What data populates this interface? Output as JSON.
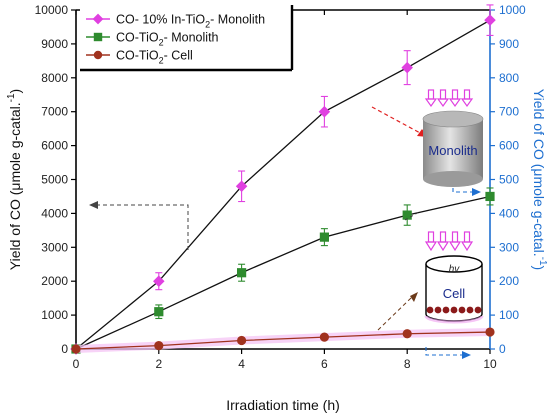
{
  "chart_data": {
    "type": "line",
    "xlabel": "Irradiation time (h)",
    "ylabel_left": "Yield of CO (μmole g-catal.",
    "ylabel_left_sup": "-1",
    "ylabel_left_end": ")",
    "ylabel_right": "Yield of CO (μmole g-catal.",
    "ylabel_right_sup": "-1",
    "ylabel_right_end": ")",
    "xlim": [
      0,
      10
    ],
    "ylim_left": [
      0,
      10000
    ],
    "ylim_right": [
      0,
      1000
    ],
    "x_ticks": [
      0,
      2,
      4,
      6,
      8,
      10
    ],
    "y_ticks_left": [
      0,
      1000,
      2000,
      3000,
      4000,
      5000,
      6000,
      7000,
      8000,
      9000,
      10000
    ],
    "y_ticks_right": [
      0,
      100,
      200,
      300,
      400,
      500,
      600,
      700,
      800,
      900,
      1000
    ],
    "legend_position": "top-left",
    "series": [
      {
        "name": "CO- 10% In-TiO2- Monolith",
        "legend_parts": [
          "CO- 10% In-TiO",
          "2",
          "- Monolith"
        ],
        "axis": "right",
        "color": "#e040e0",
        "marker": "diamond",
        "x": [
          0,
          2,
          4,
          6,
          8,
          10
        ],
        "y": [
          0,
          200,
          480,
          700,
          830,
          970
        ],
        "err": [
          0,
          25,
          45,
          45,
          50,
          45
        ]
      },
      {
        "name": "CO-TiO2- Monolith",
        "legend_parts": [
          "CO-TiO",
          "2",
          "- Monolith"
        ],
        "axis": "right",
        "color": "#2e8b2e",
        "marker": "square",
        "x": [
          0,
          2,
          4,
          6,
          8,
          10
        ],
        "y": [
          0,
          110,
          225,
          330,
          395,
          450
        ],
        "err": [
          0,
          20,
          25,
          25,
          30,
          25
        ]
      },
      {
        "name": "CO-TiO2- Cell",
        "legend_parts": [
          "CO-TiO",
          "2",
          "- Cell"
        ],
        "axis": "left",
        "color": "#a0321e",
        "marker": "circle",
        "x": [
          0,
          2,
          4,
          6,
          8,
          10
        ],
        "y": [
          0,
          100,
          250,
          350,
          450,
          500
        ],
        "err": [
          0,
          0,
          0,
          0,
          0,
          0
        ]
      }
    ],
    "annotations": {
      "monolith_label": "Monolith",
      "cell_label": "Cell",
      "hv_label": "hv"
    }
  }
}
